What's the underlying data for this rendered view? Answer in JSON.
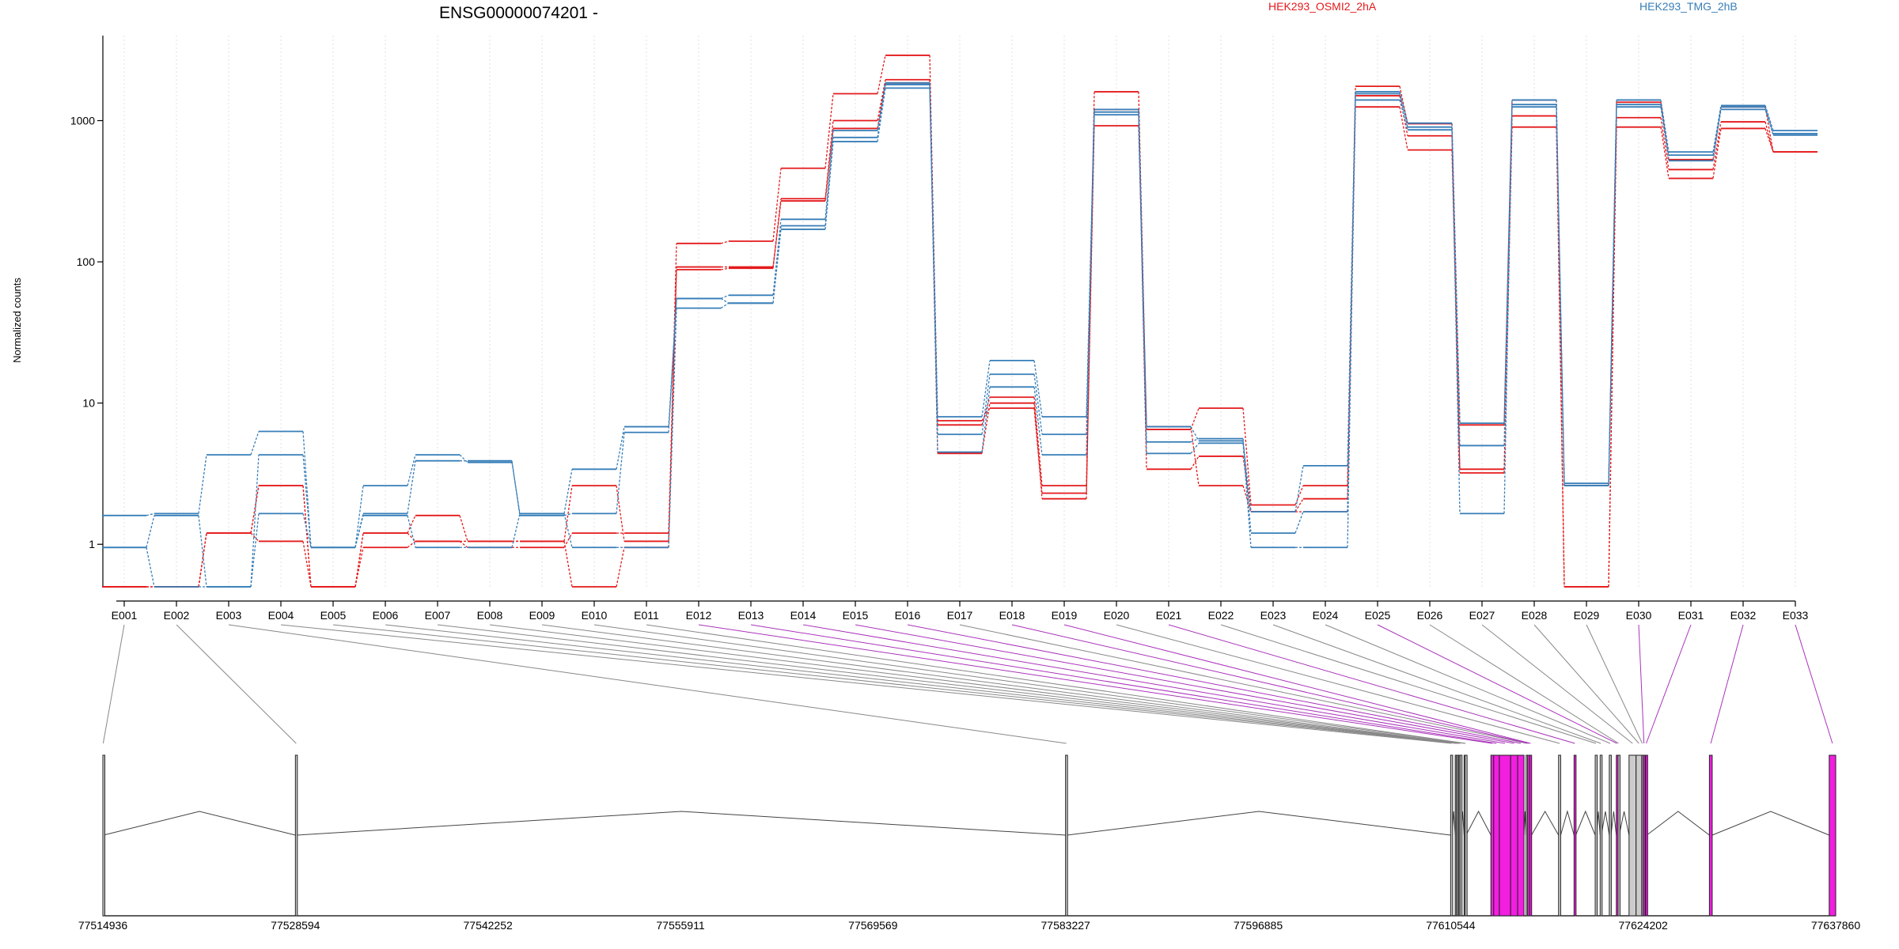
{
  "chart_data": {
    "type": "line",
    "title": "ENSG00000074201 -",
    "ylabel": "Normalized counts",
    "y_scale": "log",
    "ylim": [
      0.5,
      4000
    ],
    "yticks": [
      "1",
      "10",
      "100",
      "1000"
    ],
    "legend_placement": "top",
    "colors": {
      "HEK293_OSMI2_2hA": "#e41a1c",
      "HEK293_TMG_2hB": "#377eb8",
      "exon_highlight": "#f21ee0",
      "exon_link": "#aa33bb"
    },
    "categories": [
      "E001",
      "E002",
      "E003",
      "E004",
      "E005",
      "E006",
      "E007",
      "E008",
      "E009",
      "E010",
      "E011",
      "E012",
      "E013",
      "E014",
      "E015",
      "E016",
      "E017",
      "E018",
      "E019",
      "E020",
      "E021",
      "E022",
      "E023",
      "E024",
      "E025",
      "E026",
      "E027",
      "E028",
      "E029",
      "E030",
      "E031",
      "E032",
      "E033"
    ],
    "series": [
      {
        "name": "HEK293_OSMI2_2hA",
        "group": "HEK293_OSMI2_2hA",
        "values": [
          0.5,
          0.5,
          1.2,
          2.6,
          0.5,
          1.2,
          1.6,
          1.05,
          1.05,
          2.6,
          1.05,
          135,
          140,
          460,
          1550,
          2900,
          7,
          11,
          2.6,
          1600,
          6.5,
          9.2,
          1.9,
          2.6,
          1750,
          950,
          7,
          1400,
          0.5,
          1350,
          530,
          1250,
          600
        ]
      },
      {
        "name": "HEK293_OSMI2_2hA",
        "group": "HEK293_OSMI2_2hA",
        "values": [
          0.5,
          0.5,
          1.2,
          1.05,
          0.5,
          0.95,
          1.05,
          0.95,
          0.95,
          1.2,
          1.2,
          92,
          92,
          280,
          1000,
          1950,
          4.4,
          10,
          2.1,
          1200,
          3.4,
          4.2,
          1.7,
          2.1,
          1500,
          780,
          3.2,
          1080,
          2.6,
          1050,
          450,
          980,
          600
        ]
      },
      {
        "name": "HEK293_OSMI2_2hA",
        "group": "HEK293_OSMI2_2hA",
        "values": [
          0.5,
          0.5,
          1.2,
          2.6,
          0.5,
          1.2,
          1.05,
          1.05,
          1.05,
          0.5,
          0.95,
          88,
          90,
          270,
          880,
          1850,
          7.5,
          9.2,
          2.3,
          920,
          6.8,
          2.6,
          1.7,
          1.7,
          1250,
          620,
          3.4,
          900,
          0.5,
          900,
          390,
          880,
          600
        ]
      },
      {
        "name": "HEK293_TMG_2hB",
        "group": "HEK293_TMG_2hB",
        "values": [
          1.6,
          1.65,
          4.3,
          6.3,
          0.95,
          2.6,
          4.3,
          3.8,
          1.65,
          3.4,
          6.8,
          55,
          58,
          200,
          850,
          1850,
          8,
          20,
          8,
          1200,
          6.8,
          5.4,
          1.7,
          3.6,
          1600,
          960,
          7.2,
          1400,
          2.6,
          1400,
          600,
          1280,
          850
        ]
      },
      {
        "name": "HEK293_TMG_2hB",
        "group": "HEK293_TMG_2hB",
        "values": [
          0.95,
          1.6,
          0.5,
          4.3,
          0.95,
          1.65,
          3.9,
          3.9,
          1.6,
          1.65,
          6.2,
          55,
          51,
          180,
          760,
          1800,
          6,
          16,
          6,
          1150,
          5.3,
          5.6,
          1.2,
          1.7,
          1550,
          900,
          5,
          1300,
          2.6,
          1300,
          570,
          1250,
          810
        ]
      },
      {
        "name": "HEK293_TMG_2hB",
        "group": "HEK293_TMG_2hB",
        "values": [
          0.95,
          0.5,
          0.5,
          1.65,
          0.95,
          1.6,
          0.95,
          0.95,
          1.65,
          0.95,
          0.95,
          47,
          51,
          170,
          710,
          1700,
          4.5,
          13,
          4.3,
          1100,
          4.4,
          5.2,
          0.95,
          0.95,
          1400,
          860,
          1.65,
          1250,
          2.7,
          1250,
          520,
          1200,
          790
        ]
      }
    ],
    "genomic_axis": {
      "ticks": [
        "77514936",
        "77528594",
        "77542252",
        "77555911",
        "77569569",
        "77583227",
        "77596885",
        "77610544",
        "77624202",
        "77637860"
      ],
      "range": [
        77514936,
        77637860
      ]
    },
    "exons": [
      {
        "id": "E001",
        "start": 77514936,
        "end": 77514980,
        "highlight": false
      },
      {
        "id": "E002",
        "start": 77528594,
        "end": 77528700,
        "highlight": false
      },
      {
        "id": "E003",
        "start": 77583227,
        "end": 77583340,
        "highlight": false
      },
      {
        "id": "E004",
        "start": 77610544,
        "end": 77610650,
        "highlight": false
      },
      {
        "id": "E005",
        "start": 77610870,
        "end": 77610940,
        "highlight": false
      },
      {
        "id": "E006",
        "start": 77610950,
        "end": 77611040,
        "highlight": false
      },
      {
        "id": "E007",
        "start": 77611050,
        "end": 77611120,
        "highlight": false
      },
      {
        "id": "E008",
        "start": 77611130,
        "end": 77611200,
        "highlight": false
      },
      {
        "id": "E009",
        "start": 77611210,
        "end": 77611280,
        "highlight": false
      },
      {
        "id": "E010",
        "start": 77611500,
        "end": 77611560,
        "highlight": false
      },
      {
        "id": "E011",
        "start": 77611570,
        "end": 77611640,
        "highlight": false
      },
      {
        "id": "E012",
        "start": 77613400,
        "end": 77613600,
        "highlight": true
      },
      {
        "id": "E013",
        "start": 77613600,
        "end": 77614000,
        "highlight": true
      },
      {
        "id": "E014",
        "start": 77614000,
        "end": 77614800,
        "highlight": true
      },
      {
        "id": "E015",
        "start": 77614800,
        "end": 77615300,
        "highlight": true
      },
      {
        "id": "E016",
        "start": 77615300,
        "end": 77615750,
        "highlight": true
      },
      {
        "id": "E017",
        "start": 77615900,
        "end": 77616000,
        "highlight": false
      },
      {
        "id": "E018",
        "start": 77616000,
        "end": 77616150,
        "highlight": true
      },
      {
        "id": "E019",
        "start": 77616150,
        "end": 77616280,
        "highlight": true
      },
      {
        "id": "E020",
        "start": 77618200,
        "end": 77618350,
        "highlight": false
      },
      {
        "id": "E021",
        "start": 77619300,
        "end": 77619420,
        "highlight": true
      },
      {
        "id": "E022",
        "start": 77620800,
        "end": 77620900,
        "highlight": false
      },
      {
        "id": "E023",
        "start": 77621150,
        "end": 77621240,
        "highlight": false
      },
      {
        "id": "E024",
        "start": 77621800,
        "end": 77621920,
        "highlight": false
      },
      {
        "id": "E025",
        "start": 77622300,
        "end": 77622380,
        "highlight": true
      },
      {
        "id": "E026",
        "start": 77622420,
        "end": 77622500,
        "highlight": false
      },
      {
        "id": "E027",
        "start": 77623200,
        "end": 77623700,
        "highlight": false
      },
      {
        "id": "E028",
        "start": 77623700,
        "end": 77624100,
        "highlight": false
      },
      {
        "id": "E029",
        "start": 77624100,
        "end": 77624180,
        "highlight": false
      },
      {
        "id": "E030",
        "start": 77624200,
        "end": 77624320,
        "highlight": true
      },
      {
        "id": "E031",
        "start": 77624380,
        "end": 77624460,
        "highlight": true
      },
      {
        "id": "E032",
        "start": 77628900,
        "end": 77629100,
        "highlight": true
      },
      {
        "id": "E033",
        "start": 77637400,
        "end": 77637860,
        "highlight": true
      }
    ]
  }
}
